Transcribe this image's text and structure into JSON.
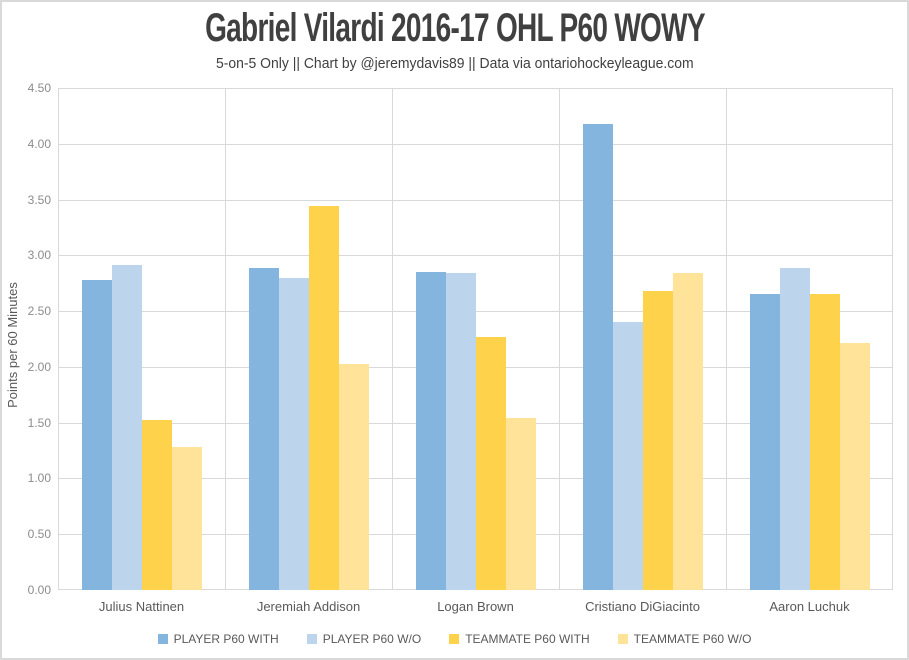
{
  "page": {
    "background": "#FFFFFF",
    "frame_border_color": "#D9D9D9"
  },
  "chart_data": {
    "type": "bar",
    "title": "Gabriel Vilardi 2016-17 OHL P60 WOWY",
    "subtitle": "5-on-5 Only || Chart by @jeremydavis89 || Data via ontariohockeyleague.com",
    "ylabel": "Points per 60 Minutes",
    "xlabel": "",
    "ylim": [
      0,
      4.5
    ],
    "ytick_step": 0.5,
    "ytick_values": [
      0,
      0.5,
      1,
      1.5,
      2,
      2.5,
      3,
      3.5,
      4,
      4.5
    ],
    "ytick_labels": [
      "0.00",
      "0.50",
      "1.00",
      "1.50",
      "2.00",
      "2.50",
      "3.00",
      "3.50",
      "4.00",
      "4.50"
    ],
    "grid": true,
    "legend_position": "bottom",
    "categories": [
      "Julius Nattinen",
      "Jeremiah Addison",
      "Logan Brown",
      "Cristiano DiGiacinto",
      "Aaron Luchuk"
    ],
    "series": [
      {
        "name": "PLAYER P60 WITH",
        "color": "#84B5DF",
        "values": [
          2.78,
          2.89,
          2.85,
          4.18,
          2.65
        ]
      },
      {
        "name": "PLAYER P60 W/O",
        "color": "#BCD5EC",
        "values": [
          2.91,
          2.8,
          2.84,
          2.4,
          2.89
        ]
      },
      {
        "name": "TEAMMATE P60 WITH",
        "color": "#FFD24C",
        "values": [
          1.52,
          3.44,
          2.27,
          2.68,
          2.65
        ]
      },
      {
        "name": "TEAMMATE P60 W/O",
        "color": "#FFE399",
        "values": [
          1.28,
          2.03,
          1.54,
          2.84,
          2.21
        ]
      }
    ],
    "colors": {
      "gridline": "#D9D9D9",
      "plot_border": "#D9D9D9",
      "axis_tick_text": "#8C8C8C",
      "category_text": "#595959",
      "legend_text": "#595959",
      "title_text": "#404040",
      "background": "#FFFFFF"
    }
  }
}
